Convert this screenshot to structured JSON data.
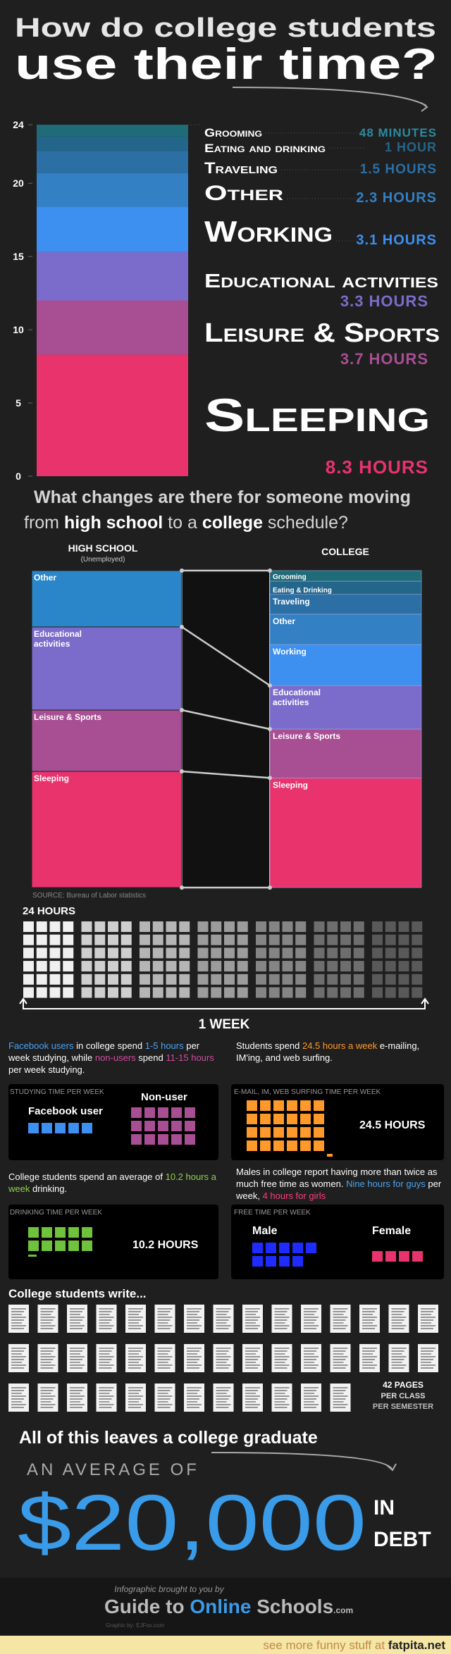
{
  "header": {
    "title_line1": "How do college students",
    "title_line2": "use their time?"
  },
  "chart_data": {
    "type": "stacked-bar",
    "categories": [
      null
    ],
    "ylim": [
      0,
      24
    ],
    "yticks": [
      0,
      5,
      10,
      15,
      20,
      24
    ],
    "series": [
      {
        "name": "Sleeping",
        "color": "#e8336d",
        "values": [
          8.3
        ],
        "value_labels": [
          "8.3 HOURS"
        ]
      },
      {
        "name": "Leisure & Sports",
        "color": "#a84e93",
        "values": [
          3.7
        ],
        "value_labels": [
          "3.7 HOURS"
        ]
      },
      {
        "name": "Educational activities",
        "color": "#7b6ccc",
        "values": [
          3.3
        ],
        "value_labels": [
          "3.3 HOURS"
        ]
      },
      {
        "name": "Working",
        "color": "#3d8ff0",
        "values": [
          3.1
        ],
        "value_labels": [
          "3.1 HOURS"
        ]
      },
      {
        "name": "Other",
        "color": "#3380c4",
        "values": [
          2.3
        ],
        "value_labels": [
          "2.3 HOURS"
        ]
      },
      {
        "name": "Traveling",
        "color": "#2b6fa5",
        "values": [
          1.5
        ],
        "value_labels": [
          "1.5 HOURS"
        ]
      },
      {
        "name": "Eating and drinking",
        "color": "#24658a",
        "values": [
          1
        ],
        "value_labels": [
          "1 HOUR"
        ]
      },
      {
        "name": "Grooming",
        "color": "#1f6b78",
        "values": [
          0.8
        ],
        "value_labels": [
          "48 MINUTES"
        ]
      }
    ]
  },
  "comparison": {
    "question_line1": "What changes are there for someone moving",
    "question_line2": [
      "from ",
      "high school",
      " to a ",
      "college",
      " schedule?"
    ],
    "high_school": {
      "title": "HIGH SCHOOL",
      "subtitle": "(Unemployed)",
      "segments": [
        [
          "Other"
        ],
        [
          "Educational",
          "activities"
        ],
        [
          "Leisure & Sports"
        ],
        [
          "Sleeping"
        ]
      ]
    },
    "college": {
      "title": "COLLEGE",
      "segments": [
        [
          "Sleeping"
        ],
        [
          "Leisure & Sports"
        ],
        [
          "Educational",
          "activities"
        ],
        [
          "Working"
        ],
        [
          "Other"
        ],
        [
          "Traveling"
        ],
        [
          "Eating & Drinking"
        ],
        [
          "Grooming"
        ]
      ]
    },
    "source": "SOURCE: Bureau of Labor statistics"
  },
  "week": {
    "label_hours": "24 HOURS",
    "label_week": "1 WEEK"
  },
  "studying": {
    "text": [
      "Facebook users",
      " in college spend ",
      "1-5 hours",
      " per week studying, while ",
      "non-users",
      " spend ",
      "11-15 hours",
      " per week studying."
    ],
    "box_title": "STUDYING TIME PER WEEK",
    "label_user": "Facebook user",
    "label_nonuser": "Non-user"
  },
  "surfing": {
    "text": [
      "Students spend ",
      "24.5 hours a week",
      " e-mailing, IM'ing, and web surfing."
    ],
    "box_title": "E-MAIL, IM, WEB SURFING TIME PER WEEK",
    "value": "24.5 HOURS"
  },
  "drinking": {
    "text": [
      "College students spend an average of ",
      "10.2 hours a week",
      " drinking."
    ],
    "box_title": "DRINKING TIME PER WEEK",
    "value": "10.2 HOURS"
  },
  "free_time": {
    "text": [
      "Males in college report having more than twice as much free time as women. ",
      "Nine hours for guys",
      " per week, ",
      "4 hours for girls"
    ],
    "box_title": "FREE TIME PER WEEK",
    "label_male": "Male",
    "label_female": "Female"
  },
  "writing": {
    "title": "College students write...",
    "note": [
      "42 PAGES",
      "PER CLASS",
      "PER SEMESTER"
    ]
  },
  "debt": {
    "intro": "All of this leaves a college graduate",
    "average": "AN AVERAGE OF",
    "amount": "$20,000",
    "suffix": [
      "IN",
      "DEBT"
    ]
  },
  "footer": {
    "brought": "Infographic brought to you by",
    "brand": [
      "Guide to ",
      "Online",
      " Schools",
      ".com"
    ],
    "credit": "Graphic by: EJFox.com",
    "banner": [
      "see more funny stuff at ",
      "fatpita.net"
    ]
  }
}
